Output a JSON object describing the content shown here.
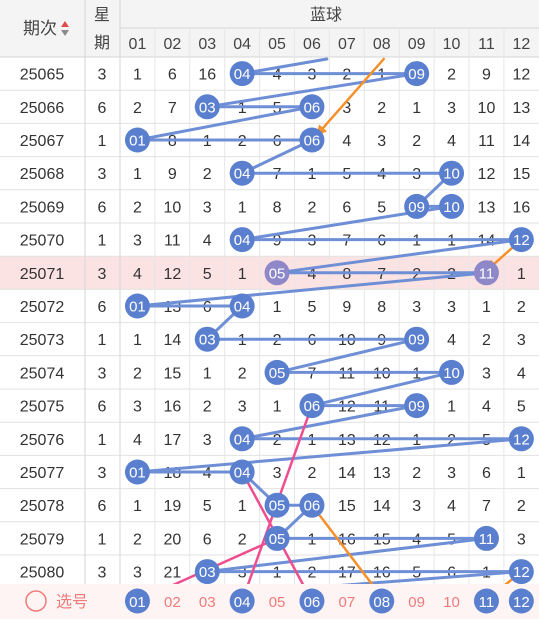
{
  "header": {
    "period_label": "期次",
    "weekday_label_top": "星",
    "weekday_label_bottom": "期",
    "section_title": "蓝球"
  },
  "columns": [
    "01",
    "02",
    "03",
    "04",
    "05",
    "06",
    "07",
    "08",
    "09",
    "10",
    "11",
    "12"
  ],
  "footer": {
    "select_label": "选号",
    "numbers": [
      "01",
      "02",
      "03",
      "04",
      "05",
      "06",
      "07",
      "08",
      "09",
      "10",
      "11",
      "12"
    ],
    "selected": [
      "01",
      "04",
      "06",
      "08",
      "11",
      "12"
    ]
  },
  "colors": {
    "ball": "#5b7fcf",
    "line": "#6e8fd6",
    "highlight_row": "#fbe3e3",
    "footer_row": "#fff4f4",
    "footer_text": "#f07a7a",
    "orange_line": "#f5902a",
    "pink_line": "#ee4d8e"
  },
  "chart_data": {
    "type": "table",
    "rows": [
      {
        "period": "25065",
        "weekday": "3",
        "values": [
          1,
          6,
          16,
          "04",
          4,
          3,
          2,
          1,
          "09",
          2,
          9,
          12
        ]
      },
      {
        "period": "25066",
        "weekday": "6",
        "values": [
          2,
          7,
          "03",
          1,
          5,
          "06",
          3,
          2,
          1,
          3,
          10,
          13
        ]
      },
      {
        "period": "25067",
        "weekday": "1",
        "values": [
          "01",
          8,
          1,
          2,
          6,
          "06",
          4,
          3,
          2,
          4,
          11,
          14
        ]
      },
      {
        "period": "25068",
        "weekday": "3",
        "values": [
          1,
          9,
          2,
          "04",
          7,
          1,
          5,
          4,
          3,
          "10",
          12,
          15
        ]
      },
      {
        "period": "25069",
        "weekday": "6",
        "values": [
          2,
          10,
          3,
          1,
          8,
          2,
          6,
          5,
          "09",
          "10",
          13,
          16
        ]
      },
      {
        "period": "25070",
        "weekday": "1",
        "values": [
          3,
          11,
          4,
          "04",
          9,
          3,
          7,
          6,
          1,
          1,
          14,
          "12"
        ]
      },
      {
        "period": "25071",
        "weekday": "3",
        "values": [
          4,
          12,
          5,
          1,
          "05",
          4,
          8,
          7,
          2,
          2,
          "11",
          1
        ],
        "highlight": true
      },
      {
        "period": "25072",
        "weekday": "6",
        "values": [
          "01",
          13,
          6,
          "04",
          1,
          5,
          9,
          8,
          3,
          3,
          1,
          2
        ]
      },
      {
        "period": "25073",
        "weekday": "1",
        "values": [
          1,
          14,
          "03",
          1,
          2,
          6,
          10,
          9,
          "09",
          4,
          2,
          3
        ]
      },
      {
        "period": "25074",
        "weekday": "3",
        "values": [
          2,
          15,
          1,
          2,
          "05",
          7,
          11,
          10,
          1,
          "10",
          3,
          4
        ]
      },
      {
        "period": "25075",
        "weekday": "6",
        "values": [
          3,
          16,
          2,
          3,
          1,
          "06",
          12,
          11,
          "09",
          1,
          4,
          5
        ]
      },
      {
        "period": "25076",
        "weekday": "1",
        "values": [
          4,
          17,
          3,
          "04",
          2,
          1,
          13,
          12,
          1,
          2,
          5,
          "12"
        ]
      },
      {
        "period": "25077",
        "weekday": "3",
        "values": [
          "01",
          18,
          4,
          "04",
          3,
          2,
          14,
          13,
          2,
          3,
          6,
          1
        ]
      },
      {
        "period": "25078",
        "weekday": "6",
        "values": [
          1,
          19,
          5,
          1,
          "05",
          "06",
          15,
          14,
          3,
          4,
          7,
          2
        ]
      },
      {
        "period": "25079",
        "weekday": "1",
        "values": [
          2,
          20,
          6,
          2,
          "05",
          1,
          16,
          15,
          4,
          5,
          "11",
          3
        ]
      },
      {
        "period": "25080",
        "weekday": "3",
        "values": [
          3,
          21,
          "03",
          3,
          1,
          2,
          17,
          16,
          5,
          6,
          1,
          "12"
        ]
      }
    ]
  }
}
